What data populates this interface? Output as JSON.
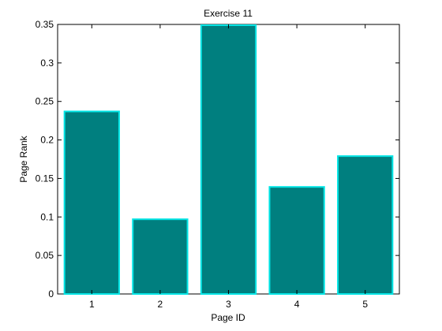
{
  "chart_data": {
    "type": "bar",
    "title": "Exercise 11",
    "xlabel": "Page ID",
    "ylabel": "Page Rank",
    "categories": [
      "1",
      "2",
      "3",
      "4",
      "5"
    ],
    "values": [
      0.237,
      0.097,
      0.349,
      0.139,
      0.179
    ],
    "ylim": [
      0,
      0.35
    ],
    "yticks": [
      "0",
      "0.05",
      "0.1",
      "0.15",
      "0.2",
      "0.25",
      "0.3",
      "0.35"
    ],
    "grid": false,
    "colors": {
      "bar_fill": "#007f7f",
      "bar_edge": "#00e5e5"
    }
  }
}
